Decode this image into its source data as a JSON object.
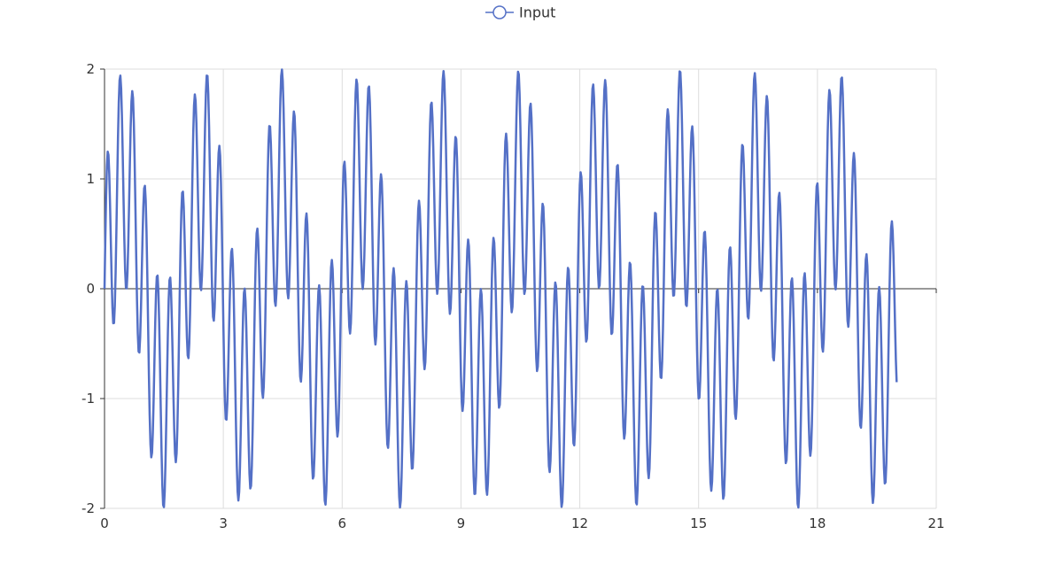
{
  "chart_data": {
    "type": "line",
    "series": [
      {
        "name": "Input",
        "formula": "sin(pi*x) + sin(20*x)",
        "x_start": 0,
        "x_end": 20,
        "x_step": 0.02,
        "color": "#5470c6"
      }
    ],
    "xlim": [
      0,
      21
    ],
    "ylim": [
      -2,
      2
    ],
    "x_ticks": [
      0,
      3,
      6,
      9,
      12,
      15,
      18,
      21
    ],
    "y_ticks": [
      -2,
      -1,
      0,
      1,
      2
    ],
    "grid": true,
    "legend_position": "top-center",
    "title": "",
    "xlabel": "",
    "ylabel": ""
  }
}
